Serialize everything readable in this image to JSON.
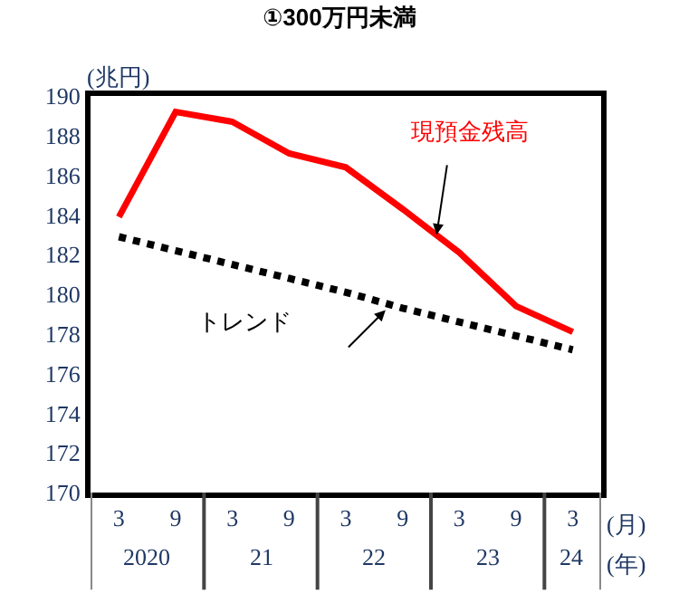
{
  "chart_data": {
    "type": "line",
    "title": "①300万円未満",
    "ylabel": "(兆円)",
    "categories": [
      "3",
      "9",
      "3",
      "9",
      "3",
      "9",
      "3",
      "9",
      "3"
    ],
    "annotations": [
      "2020",
      "21",
      "22",
      "23",
      "24",
      "(月)",
      "(年)"
    ],
    "series": [
      {
        "name": "現預金残高",
        "color": "#ff0000",
        "line_style": "solid",
        "values": [
          183.9,
          189.2,
          188.7,
          187.1,
          186.4,
          184.3,
          182.1,
          179.4,
          178.1
        ]
      },
      {
        "name": "トレンド",
        "color": "#000000",
        "line_style": "dotted",
        "values": [
          182.9,
          182.2,
          181.5,
          180.8,
          180.1,
          179.3,
          178.6,
          177.9,
          177.2
        ]
      }
    ],
    "ylim": [
      170,
      190
    ],
    "yticks": [
      170,
      172,
      174,
      176,
      178,
      180,
      182,
      184,
      186,
      188,
      190
    ],
    "grid": false,
    "legend": false,
    "marker": "none"
  }
}
